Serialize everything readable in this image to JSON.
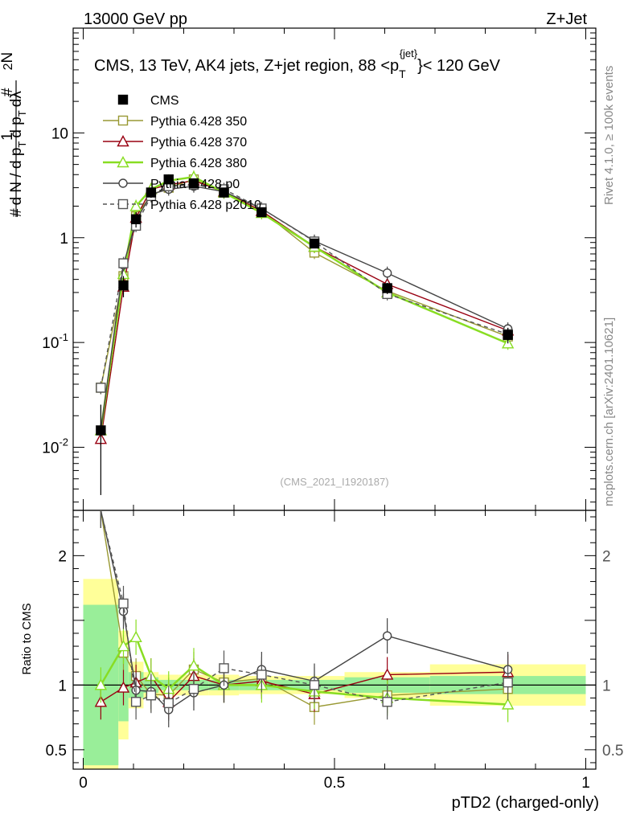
{
  "header": {
    "left": "13000 GeV pp",
    "right": "Z+Jet"
  },
  "side_labels": {
    "rivet": "Rivet 4.1.0, ≥ 100k events",
    "mcplots": "mcplots.cern.ch [arXiv:2401.10621]"
  },
  "watermark": "(CMS_2021_I1920187)",
  "colors": {
    "CMS": "#000000",
    "p350": "#999933",
    "p370": "#990011",
    "p380": "#88dd22",
    "p0": "#444444",
    "p2010": "#555555",
    "band_yellow": "#ffff99",
    "band_green": "#99ee99"
  },
  "chart_data": {
    "type": "line",
    "title": "CMS, 13 TeV, AK4 jets, Z+jet region, 88 <p_T^{jet}< 120 GeV",
    "title_parts": {
      "prefix": "CMS, 13 TeV, AK4 jets, Z+jet region, 88 <p",
      "sub": "T",
      "sup": "{jet}",
      "suffix": "}< 120 GeV"
    },
    "xlabel": "pTD2 (charged-only)",
    "ylabel_main": "1/(dN / d p_T) d²N/(d p_T dλ)",
    "ylabel_ratio": "Ratio to CMS",
    "xlim": [
      -0.02,
      1.02
    ],
    "ylim_main": [
      0.0025,
      100
    ],
    "ylim_ratio": [
      0.35,
      2.35
    ],
    "yscale_main": "log",
    "x_ticks": [
      "0",
      "0.5",
      "1"
    ],
    "y_ticks_main": [
      "10^-2",
      "10^-1",
      "1",
      "10"
    ],
    "y_ticks_ratio": [
      "0.5",
      "1",
      "2"
    ],
    "legend": [
      "CMS",
      "Pythia 6.428 350",
      "Pythia 6.428 370",
      "Pythia 6.428 380",
      "Pythia 6.428 p0",
      "Pythia 6.428 p2010"
    ],
    "legend_position": "top-left",
    "bin_edges": [
      0.0,
      0.07,
      0.09,
      0.12,
      0.15,
      0.19,
      0.25,
      0.31,
      0.4,
      0.52,
      0.69,
      1.0
    ],
    "x": [
      0.035,
      0.08,
      0.105,
      0.135,
      0.17,
      0.22,
      0.28,
      0.355,
      0.46,
      0.605,
      0.845
    ],
    "cms": {
      "values": [
        0.0145,
        0.35,
        1.5,
        2.7,
        3.6,
        3.3,
        2.7,
        1.75,
        0.88,
        0.33,
        0.118
      ],
      "errors": [
        0.011,
        0.08,
        0.25,
        0.3,
        0.35,
        0.3,
        0.25,
        0.15,
        0.08,
        0.04,
        0.02
      ]
    },
    "series": [
      {
        "key": "p350",
        "name": "Pythia 6.428 350",
        "marker": "square",
        "dash": false,
        "values": [
          0.037,
          0.43,
          1.6,
          2.55,
          3.0,
          3.6,
          2.7,
          1.8,
          0.72,
          0.31,
          0.114
        ],
        "ratio": [
          2.55,
          1.25,
          1.07,
          0.93,
          0.92,
          1.12,
          1.02,
          1.05,
          0.83,
          0.92,
          0.97
        ]
      },
      {
        "key": "p370",
        "name": "Pythia 6.428 370",
        "marker": "triangle",
        "dash": false,
        "values": [
          0.012,
          0.34,
          1.55,
          2.9,
          3.2,
          3.5,
          2.75,
          1.8,
          0.82,
          0.36,
          0.13
        ],
        "ratio": [
          0.87,
          0.98,
          1.02,
          1.07,
          0.87,
          1.07,
          1.0,
          1.03,
          0.93,
          1.08,
          1.1
        ]
      },
      {
        "key": "p380",
        "name": "Pythia 6.428 380",
        "marker": "triangle",
        "dash": false,
        "values": [
          0.0145,
          0.45,
          2.0,
          2.9,
          3.5,
          3.8,
          2.7,
          1.72,
          0.82,
          0.3,
          0.098
        ],
        "ratio": [
          1.0,
          1.3,
          1.37,
          1.07,
          0.97,
          1.15,
          1.0,
          1.0,
          0.95,
          0.9,
          0.85
        ]
      },
      {
        "key": "p0",
        "name": "Pythia 6.428 p0",
        "marker": "circle",
        "dash": false,
        "values": [
          0.0145,
          0.55,
          1.45,
          2.6,
          2.9,
          3.1,
          2.75,
          1.9,
          0.93,
          0.46,
          0.135
        ],
        "ratio": [
          2.55,
          1.57,
          0.96,
          0.95,
          0.81,
          0.94,
          1.0,
          1.12,
          1.03,
          1.38,
          1.12
        ]
      },
      {
        "key": "p2010",
        "name": "Pythia 6.428 p2010",
        "marker": "square",
        "dash": true,
        "values": [
          0.037,
          0.57,
          1.3,
          2.5,
          3.1,
          3.2,
          2.9,
          1.9,
          0.92,
          0.29,
          0.12
        ],
        "ratio": [
          2.55,
          1.63,
          0.87,
          0.92,
          0.86,
          0.97,
          1.13,
          1.08,
          1.0,
          0.87,
          1.02
        ]
      }
    ],
    "bands": {
      "stat_rel": [
        0.62,
        0.28,
        0.1,
        0.06,
        0.04,
        0.04,
        0.04,
        0.04,
        0.04,
        0.06,
        0.07
      ],
      "total_rel": [
        0.82,
        0.42,
        0.18,
        0.1,
        0.08,
        0.08,
        0.08,
        0.07,
        0.07,
        0.1,
        0.16
      ]
    }
  }
}
